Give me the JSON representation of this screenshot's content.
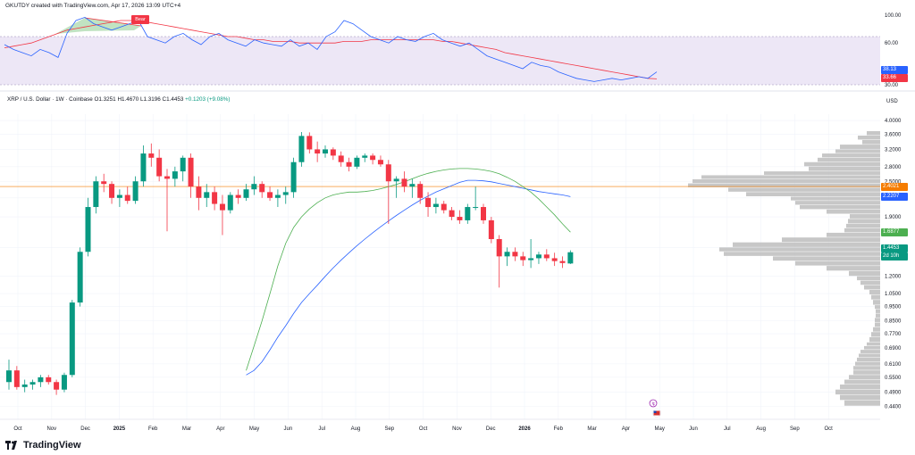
{
  "header": {
    "caption": "GKUTDY created with TradingView.com, Apr 17, 2026 13:09 UTC+4"
  },
  "symbol": {
    "name": "XRP / U.S. Dollar · 1W · Coinbase",
    "open": "O1.3251",
    "high": "H1.4670",
    "low": "L1.3196",
    "close": "C1.4453",
    "change": "+0.1203 (+9.08%)"
  },
  "rsi_panel": {
    "levels": [
      "100.00",
      "60.00",
      "30.00"
    ],
    "badges": [
      {
        "text": "38.13",
        "color": "#2962ff"
      },
      {
        "text": "33.66",
        "color": "#f23645"
      }
    ],
    "divergence_label": "Bear",
    "rsi_values": [
      55,
      52,
      50,
      48,
      52,
      50,
      47,
      62,
      70,
      72,
      68,
      66,
      64,
      66,
      68,
      70,
      60,
      58,
      56,
      60,
      62,
      58,
      55,
      60,
      62,
      58,
      56,
      54,
      58,
      56,
      55,
      54,
      58,
      54,
      56,
      52,
      60,
      63,
      70,
      68,
      64,
      60,
      58,
      56,
      60,
      58,
      57,
      60,
      62,
      58,
      56,
      54,
      56,
      52,
      48,
      46,
      44,
      42,
      40,
      44,
      42,
      41,
      38,
      36,
      34,
      33,
      32,
      33,
      34,
      33,
      34,
      35,
      34,
      38
    ],
    "rsi_ma_values": [
      53,
      54,
      55,
      56,
      58,
      60,
      62,
      64,
      65,
      66,
      67,
      68,
      69,
      70,
      70,
      70,
      69,
      68,
      67,
      66,
      65,
      64,
      63,
      62,
      61,
      60,
      60,
      59,
      58,
      58,
      57,
      57,
      57,
      56,
      56,
      56,
      56,
      56,
      57,
      57,
      57,
      58,
      58,
      58,
      58,
      58,
      58,
      58,
      58,
      57,
      57,
      56,
      55,
      54,
      53,
      52,
      50,
      49,
      48,
      47,
      46,
      45,
      44,
      43,
      42,
      41,
      40,
      39,
      38,
      37,
      36,
      35,
      34,
      33.66
    ],
    "colors": {
      "rsi": "#2962ff",
      "ma": "#f23645",
      "band": "#ede7f6"
    }
  },
  "price_axis": {
    "unit": "USD",
    "ticks": [
      "4.0000",
      "3.6000",
      "3.2000",
      "2.8000",
      "2.5000",
      "2.2000",
      "1.9000",
      "1.5000",
      "1.2000",
      "1.0500",
      "0.9500",
      "0.8500",
      "0.7700",
      "0.6900",
      "0.6100",
      "0.5500",
      "0.4900",
      "0.4400"
    ],
    "badges": [
      {
        "text": "2.4021",
        "color": "#f57c00"
      },
      {
        "text": "2.2207",
        "color": "#2962ff"
      },
      {
        "text": "1.6877",
        "color": "#4caf50"
      },
      {
        "text": "1.4453",
        "color": "#089981"
      },
      {
        "text": "2d 10h",
        "color": "#089981"
      }
    ]
  },
  "time_axis": {
    "labels": [
      {
        "t": "Oct",
        "bold": false
      },
      {
        "t": "Nov",
        "bold": false
      },
      {
        "t": "Dec",
        "bold": false
      },
      {
        "t": "2025",
        "bold": true
      },
      {
        "t": "Feb",
        "bold": false
      },
      {
        "t": "Mar",
        "bold": false
      },
      {
        "t": "Apr",
        "bold": false
      },
      {
        "t": "May",
        "bold": false
      },
      {
        "t": "Jun",
        "bold": false
      },
      {
        "t": "Jul",
        "bold": false
      },
      {
        "t": "Aug",
        "bold": false
      },
      {
        "t": "Sep",
        "bold": false
      },
      {
        "t": "Oct",
        "bold": false
      },
      {
        "t": "Nov",
        "bold": false
      },
      {
        "t": "Dec",
        "bold": false
      },
      {
        "t": "2026",
        "bold": true
      },
      {
        "t": "Feb",
        "bold": false
      },
      {
        "t": "Mar",
        "bold": false
      },
      {
        "t": "Apr",
        "bold": false
      },
      {
        "t": "May",
        "bold": false
      },
      {
        "t": "Jun",
        "bold": false
      },
      {
        "t": "Jul",
        "bold": false
      },
      {
        "t": "Aug",
        "bold": false
      },
      {
        "t": "Sep",
        "bold": false
      },
      {
        "t": "Oct",
        "bold": false
      }
    ]
  },
  "chart_data": {
    "type": "candlestick",
    "interval": "1W",
    "scale": "log",
    "ylim": [
      0.42,
      4.2
    ],
    "candles": [
      [
        0.53,
        0.63,
        0.5,
        0.58
      ],
      [
        0.58,
        0.6,
        0.5,
        0.51
      ],
      [
        0.51,
        0.54,
        0.49,
        0.52
      ],
      [
        0.52,
        0.54,
        0.5,
        0.53
      ],
      [
        0.53,
        0.56,
        0.51,
        0.55
      ],
      [
        0.55,
        0.56,
        0.52,
        0.53
      ],
      [
        0.53,
        0.54,
        0.48,
        0.5
      ],
      [
        0.5,
        0.57,
        0.49,
        0.56
      ],
      [
        0.56,
        1.0,
        0.55,
        0.98
      ],
      [
        0.98,
        1.5,
        0.95,
        1.45
      ],
      [
        1.45,
        2.2,
        1.4,
        2.05
      ],
      [
        2.05,
        2.6,
        1.95,
        2.5
      ],
      [
        2.5,
        2.65,
        2.3,
        2.45
      ],
      [
        2.45,
        2.5,
        2.1,
        2.2
      ],
      [
        2.2,
        2.35,
        2.05,
        2.25
      ],
      [
        2.25,
        2.4,
        2.1,
        2.15
      ],
      [
        2.15,
        2.6,
        2.1,
        2.5
      ],
      [
        2.5,
        3.3,
        2.4,
        3.1
      ],
      [
        3.1,
        3.35,
        2.8,
        3.0
      ],
      [
        3.0,
        3.2,
        2.5,
        2.6
      ],
      [
        2.6,
        2.75,
        1.7,
        2.55
      ],
      [
        2.55,
        2.8,
        2.4,
        2.7
      ],
      [
        2.7,
        3.05,
        2.5,
        3.0
      ],
      [
        3.0,
        3.1,
        2.2,
        2.4
      ],
      [
        2.4,
        2.6,
        2.0,
        2.2
      ],
      [
        2.2,
        2.45,
        2.05,
        2.3
      ],
      [
        2.3,
        2.4,
        2.0,
        2.1
      ],
      [
        2.1,
        2.25,
        1.65,
        2.0
      ],
      [
        2.0,
        2.3,
        1.95,
        2.25
      ],
      [
        2.25,
        2.35,
        2.1,
        2.2
      ],
      [
        2.2,
        2.45,
        2.15,
        2.35
      ],
      [
        2.35,
        2.6,
        2.25,
        2.45
      ],
      [
        2.45,
        2.5,
        2.2,
        2.3
      ],
      [
        2.3,
        2.4,
        2.15,
        2.2
      ],
      [
        2.2,
        2.35,
        2.05,
        2.25
      ],
      [
        2.25,
        2.4,
        2.1,
        2.3
      ],
      [
        2.3,
        3.0,
        2.2,
        2.9
      ],
      [
        2.9,
        3.66,
        2.8,
        3.55
      ],
      [
        3.55,
        3.65,
        3.1,
        3.2
      ],
      [
        3.2,
        3.4,
        2.9,
        3.1
      ],
      [
        3.1,
        3.3,
        3.0,
        3.2
      ],
      [
        3.2,
        3.25,
        2.95,
        3.05
      ],
      [
        3.05,
        3.15,
        2.8,
        2.9
      ],
      [
        2.9,
        3.0,
        2.7,
        2.8
      ],
      [
        2.8,
        3.05,
        2.75,
        3.0
      ],
      [
        3.0,
        3.1,
        2.9,
        3.05
      ],
      [
        3.05,
        3.1,
        2.85,
        2.95
      ],
      [
        2.95,
        3.05,
        2.8,
        2.85
      ],
      [
        2.85,
        2.95,
        1.8,
        2.5
      ],
      [
        2.5,
        2.6,
        2.2,
        2.55
      ],
      [
        2.55,
        2.7,
        2.3,
        2.4
      ],
      [
        2.4,
        2.55,
        2.2,
        2.45
      ],
      [
        2.45,
        2.5,
        2.1,
        2.2
      ],
      [
        2.2,
        2.3,
        1.9,
        2.05
      ],
      [
        2.05,
        2.2,
        1.95,
        2.1
      ],
      [
        2.1,
        2.15,
        1.95,
        2.0
      ],
      [
        2.0,
        2.05,
        1.85,
        1.9
      ],
      [
        1.9,
        2.0,
        1.8,
        1.85
      ],
      [
        1.85,
        2.1,
        1.8,
        2.05
      ],
      [
        2.05,
        2.4,
        2.0,
        2.05
      ],
      [
        2.05,
        2.1,
        1.8,
        1.85
      ],
      [
        1.85,
        1.9,
        1.55,
        1.6
      ],
      [
        1.6,
        1.65,
        1.1,
        1.4
      ],
      [
        1.4,
        1.5,
        1.3,
        1.45
      ],
      [
        1.45,
        1.5,
        1.35,
        1.4
      ],
      [
        1.4,
        1.45,
        1.3,
        1.36
      ],
      [
        1.36,
        1.6,
        1.28,
        1.38
      ],
      [
        1.38,
        1.45,
        1.32,
        1.42
      ],
      [
        1.42,
        1.48,
        1.35,
        1.38
      ],
      [
        1.38,
        1.44,
        1.3,
        1.35
      ],
      [
        1.35,
        1.4,
        1.28,
        1.33
      ],
      [
        1.3251,
        1.467,
        1.3196,
        1.4453
      ]
    ],
    "moving_averages": [
      {
        "color": "#f57c00",
        "level": 2.4021
      },
      {
        "color": "#2962ff",
        "values": [
          0.56,
          0.58,
          0.62,
          0.68,
          0.75,
          0.82,
          0.9,
          0.98,
          1.05,
          1.12,
          1.2,
          1.28,
          1.36,
          1.44,
          1.52,
          1.6,
          1.68,
          1.76,
          1.84,
          1.92,
          2.0,
          2.08,
          2.16,
          2.23,
          2.3,
          2.36,
          2.42,
          2.48,
          2.52,
          2.52,
          2.51,
          2.49,
          2.46,
          2.43,
          2.4,
          2.37,
          2.34,
          2.31,
          2.29,
          2.27,
          2.25,
          2.2207
        ]
      },
      {
        "color": "#4caf50",
        "values": [
          0.58,
          0.7,
          0.85,
          1.05,
          1.3,
          1.55,
          1.75,
          1.9,
          2.02,
          2.12,
          2.2,
          2.25,
          2.28,
          2.3,
          2.3,
          2.31,
          2.33,
          2.36,
          2.4,
          2.44,
          2.49,
          2.55,
          2.61,
          2.66,
          2.7,
          2.73,
          2.75,
          2.76,
          2.76,
          2.75,
          2.73,
          2.7,
          2.65,
          2.58,
          2.5,
          2.4,
          2.3,
          2.18,
          2.05,
          1.93,
          1.8,
          1.6877
        ]
      }
    ],
    "volume_profile_levels": [
      0.44,
      0.46,
      0.48,
      0.5,
      0.52,
      0.54,
      0.56,
      0.58,
      0.6,
      0.62,
      0.64,
      0.66,
      0.68,
      0.7,
      0.72,
      0.75,
      0.78,
      0.81,
      0.84,
      0.87,
      0.9,
      0.93,
      0.96,
      1.0,
      1.04,
      1.08,
      1.12,
      1.16,
      1.2,
      1.25,
      1.3,
      1.35,
      1.4,
      1.45,
      1.5,
      1.56,
      1.62,
      1.68,
      1.74,
      1.8,
      1.87,
      1.94,
      2.01,
      2.08,
      2.15,
      2.22,
      2.3,
      2.38,
      2.46,
      2.54,
      2.62,
      2.7,
      2.8,
      2.9,
      3.0,
      3.1,
      3.2,
      3.32,
      3.44,
      3.56
    ],
    "volume_profile_values": [
      40,
      45,
      50,
      45,
      40,
      35,
      30,
      30,
      28,
      26,
      24,
      22,
      18,
      15,
      12,
      10,
      8,
      6,
      6,
      5,
      5,
      6,
      8,
      10,
      12,
      18,
      22,
      26,
      35,
      60,
      95,
      120,
      175,
      180,
      165,
      110,
      60,
      40,
      38,
      36,
      34,
      60,
      90,
      95,
      100,
      150,
      170,
      215,
      210,
      200,
      130,
      80,
      85,
      70,
      65,
      50,
      45,
      20,
      25,
      15
    ]
  }
}
